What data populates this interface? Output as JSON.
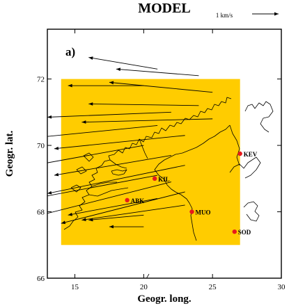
{
  "figure": {
    "title": "MODEL",
    "panel_label": "a)",
    "scale": {
      "label": "1 km/s",
      "value_km_s": 1
    },
    "region_color": "#ffcc00",
    "station_color": "#e8191c",
    "coast_color": "#000000",
    "vector_color": "#000000"
  },
  "chart_data": {
    "type": "scatter",
    "xlabel": "Geogr. long.",
    "ylabel": "Geogr. lat.",
    "xlim": [
      13,
      30
    ],
    "ylim": [
      66,
      73.5
    ],
    "x_ticks": [
      15,
      20,
      25,
      30
    ],
    "y_ticks": [
      66,
      68,
      70,
      72
    ],
    "x_tick_labels": [
      "15",
      "20",
      "25",
      "30"
    ],
    "y_tick_labels": [
      "66",
      "68",
      "70",
      "72"
    ],
    "model_region": {
      "lon": [
        14,
        27
      ],
      "lat": [
        67,
        72
      ]
    },
    "stations": [
      {
        "name": "KEV",
        "lon": 27.0,
        "lat": 69.75
      },
      {
        "name": "KIL",
        "lon": 20.8,
        "lat": 69.0
      },
      {
        "name": "ABK",
        "lon": 18.8,
        "lat": 68.35
      },
      {
        "name": "MUO",
        "lon": 23.5,
        "lat": 68.0
      },
      {
        "name": "SOD",
        "lon": 26.6,
        "lat": 67.4
      }
    ],
    "vectors": [
      {
        "lon": 21,
        "lat": 72.3,
        "dlon": -5.0,
        "dlat": 0.35
      },
      {
        "lon": 24,
        "lat": 72.1,
        "dlon": -6.0,
        "dlat": 0.2
      },
      {
        "lon": 20,
        "lat": 71.8,
        "dlon": -5.5,
        "dlat": 0.0
      },
      {
        "lon": 25,
        "lat": 71.6,
        "dlon": -7.5,
        "dlat": 0.3
      },
      {
        "lon": 24,
        "lat": 71.2,
        "dlon": -8.0,
        "dlat": 0.05
      },
      {
        "lon": 22,
        "lat": 71.0,
        "dlon": -9.0,
        "dlat": -0.15
      },
      {
        "lon": 25,
        "lat": 70.8,
        "dlon": -9.5,
        "dlat": -0.1
      },
      {
        "lon": 21,
        "lat": 70.6,
        "dlon": -8.5,
        "dlat": -0.35
      },
      {
        "lon": 23,
        "lat": 70.3,
        "dlon": -9.5,
        "dlat": -0.4
      },
      {
        "lon": 20,
        "lat": 70.0,
        "dlon": -8.0,
        "dlat": -0.6
      },
      {
        "lon": 22,
        "lat": 69.7,
        "dlon": -8.5,
        "dlat": -0.6
      },
      {
        "lon": 23,
        "lat": 69.4,
        "dlon": -10.0,
        "dlat": -0.85
      },
      {
        "lon": 21,
        "lat": 69.1,
        "dlon": -9.0,
        "dlat": -0.7
      },
      {
        "lon": 22,
        "lat": 68.9,
        "dlon": -9.5,
        "dlat": -1.0
      },
      {
        "lon": 23,
        "lat": 68.6,
        "dlon": -9.0,
        "dlat": -0.95
      },
      {
        "lon": 21,
        "lat": 68.4,
        "dlon": -6.5,
        "dlat": -0.5
      },
      {
        "lon": 23,
        "lat": 68.2,
        "dlon": -7.5,
        "dlat": -0.45
      },
      {
        "lon": 20,
        "lat": 67.9,
        "dlon": -4.0,
        "dlat": -0.15
      },
      {
        "lon": 20,
        "lat": 67.55,
        "dlon": -2.5,
        "dlat": 0.0
      }
    ]
  }
}
